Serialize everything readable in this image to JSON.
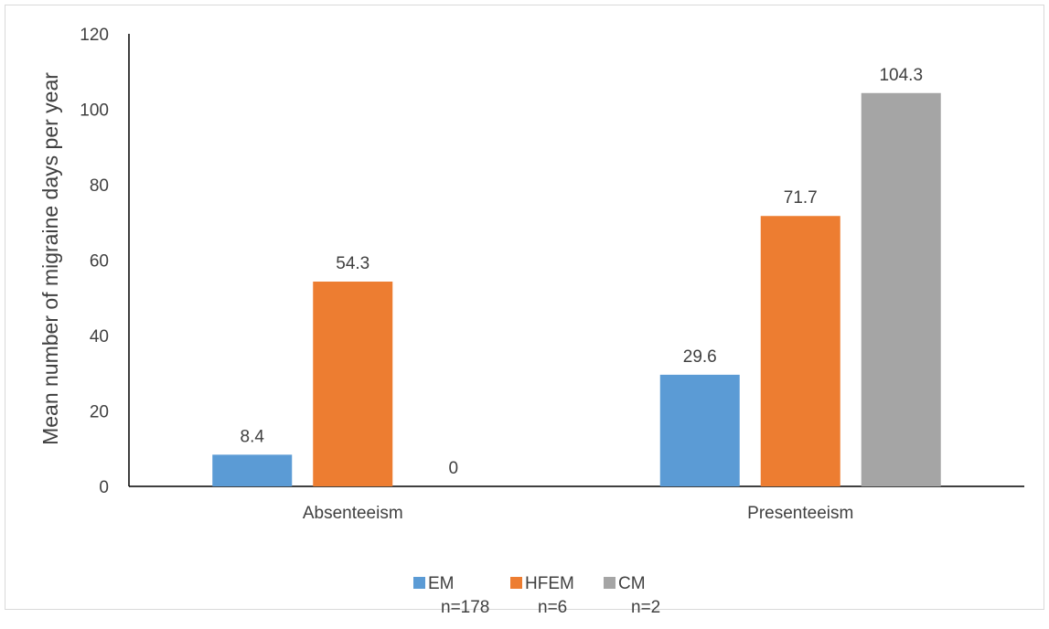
{
  "chart_data": {
    "type": "bar",
    "title": "",
    "xlabel": "",
    "ylabel": "Mean number of migraine days per year",
    "ylim": [
      0,
      120
    ],
    "yticks": [
      0,
      20,
      40,
      60,
      80,
      100,
      120
    ],
    "categories": [
      "Absenteeism",
      "Presenteeism"
    ],
    "series": [
      {
        "name": "EM",
        "sample": "n=178",
        "color": "#5b9bd5",
        "values": [
          8.4,
          29.6
        ],
        "labels": [
          "8.4",
          "29.6"
        ]
      },
      {
        "name": "HFEM",
        "sample": "n=6",
        "color": "#ed7d31",
        "values": [
          54.3,
          71.7
        ],
        "labels": [
          "54.3",
          "71.7"
        ]
      },
      {
        "name": "CM",
        "sample": "n=2",
        "color": "#a5a5a5",
        "values": [
          0,
          104.3
        ],
        "labels": [
          "0",
          "104.3"
        ]
      }
    ],
    "grid": false,
    "legend_position": "bottom"
  }
}
